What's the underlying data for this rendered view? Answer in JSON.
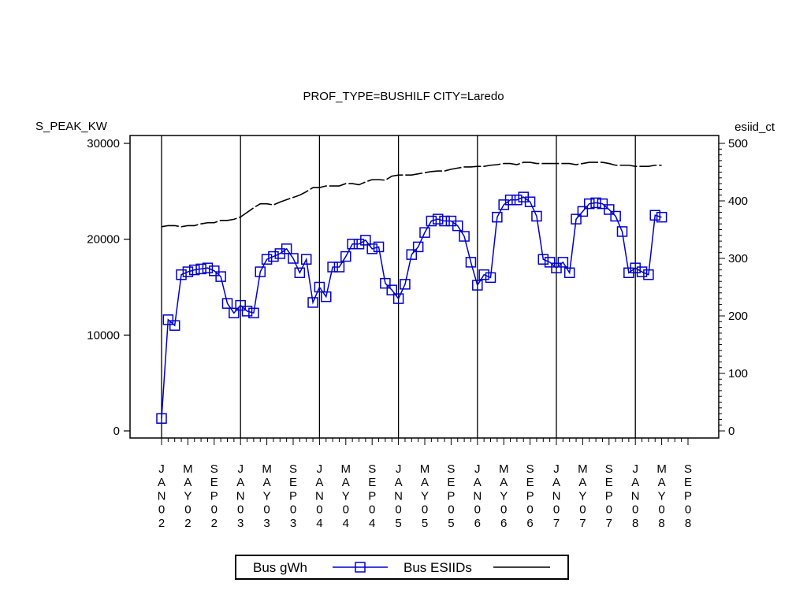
{
  "chart_data": {
    "type": "line",
    "title": "PROF_TYPE=BUSHILF CITY=Laredo",
    "y_left_label": "S_PEAK_KW",
    "y_right_label": "esiid_ct",
    "y_left_ticks": [
      0,
      10000,
      20000,
      30000
    ],
    "y_right_ticks": [
      0,
      100,
      200,
      300,
      400,
      500
    ],
    "y_left_range": [
      0,
      30000
    ],
    "y_right_range": [
      0,
      500
    ],
    "x_range": [
      "2002-01",
      "2008-09"
    ],
    "x_tick_labels": [
      "JAN02",
      "MAY02",
      "SEP02",
      "JAN03",
      "MAY03",
      "SEP03",
      "JAN04",
      "MAY04",
      "SEP04",
      "JAN05",
      "MAY05",
      "SEP05",
      "JAN06",
      "MAY06",
      "SEP06",
      "JAN07",
      "MAY07",
      "SEP07",
      "JAN08",
      "MAY08",
      "SEP08"
    ],
    "reference_lines_at": [
      "2002-01",
      "2003-01",
      "2004-01",
      "2005-01",
      "2006-01",
      "2007-01",
      "2008-01"
    ],
    "series": [
      {
        "name": "Bus gWh",
        "axis": "left",
        "color": "#0000cc",
        "marker": "square",
        "x": [
          "2002-01",
          "2002-02",
          "2002-03",
          "2002-04",
          "2002-05",
          "2002-06",
          "2002-07",
          "2002-08",
          "2002-09",
          "2002-10",
          "2002-11",
          "2002-12",
          "2003-01",
          "2003-02",
          "2003-03",
          "2003-04",
          "2003-05",
          "2003-06",
          "2003-07",
          "2003-08",
          "2003-09",
          "2003-10",
          "2003-11",
          "2003-12",
          "2004-01",
          "2004-02",
          "2004-03",
          "2004-04",
          "2004-05",
          "2004-06",
          "2004-07",
          "2004-08",
          "2004-09",
          "2004-10",
          "2004-11",
          "2004-12",
          "2005-01",
          "2005-02",
          "2005-03",
          "2005-04",
          "2005-05",
          "2005-06",
          "2005-07",
          "2005-08",
          "2005-09",
          "2005-10",
          "2005-11",
          "2005-12",
          "2006-01",
          "2006-02",
          "2006-03",
          "2006-04",
          "2006-05",
          "2006-06",
          "2006-07",
          "2006-08",
          "2006-09",
          "2006-10",
          "2006-11",
          "2006-12",
          "2007-01",
          "2007-02",
          "2007-03",
          "2007-04",
          "2007-05",
          "2007-06",
          "2007-07",
          "2007-08",
          "2007-09",
          "2007-10",
          "2007-11",
          "2007-12",
          "2008-01",
          "2008-02",
          "2008-03",
          "2008-04",
          "2008-05"
        ],
        "values": [
          1300,
          11600,
          11000,
          16300,
          16600,
          16800,
          16900,
          17000,
          16700,
          16100,
          13300,
          12300,
          13100,
          12500,
          12300,
          16600,
          17900,
          18200,
          18500,
          19000,
          18000,
          16500,
          17900,
          13400,
          15000,
          14000,
          17100,
          17100,
          18200,
          19500,
          19500,
          19900,
          19000,
          19200,
          15400,
          14700,
          13800,
          15300,
          18400,
          19200,
          20700,
          21900,
          22100,
          21900,
          21900,
          21400,
          20300,
          17600,
          15200,
          16300,
          16000,
          22300,
          23600,
          24100,
          24100,
          24400,
          23900,
          22400,
          17900,
          17600,
          17000,
          17600,
          16500,
          22100,
          22900,
          23700,
          23800,
          23700,
          23100,
          22400,
          20800,
          16500,
          17000,
          16600,
          16300,
          22500,
          22300
        ]
      },
      {
        "name": "Bus ESIIDs",
        "axis": "right",
        "color": "#000000",
        "marker": "none",
        "line_style": "dashed",
        "x": [
          "2002-01",
          "2002-02",
          "2002-03",
          "2002-04",
          "2002-05",
          "2002-06",
          "2002-07",
          "2002-08",
          "2002-09",
          "2002-10",
          "2002-11",
          "2002-12",
          "2003-01",
          "2003-02",
          "2003-03",
          "2003-04",
          "2003-05",
          "2003-06",
          "2003-07",
          "2003-08",
          "2003-09",
          "2003-10",
          "2003-11",
          "2003-12",
          "2004-01",
          "2004-02",
          "2004-03",
          "2004-04",
          "2004-05",
          "2004-06",
          "2004-07",
          "2004-08",
          "2004-09",
          "2004-10",
          "2004-11",
          "2004-12",
          "2005-01",
          "2005-02",
          "2005-03",
          "2005-04",
          "2005-05",
          "2005-06",
          "2005-07",
          "2005-08",
          "2005-09",
          "2005-10",
          "2005-11",
          "2005-12",
          "2006-01",
          "2006-02",
          "2006-03",
          "2006-04",
          "2006-05",
          "2006-06",
          "2006-07",
          "2006-08",
          "2006-09",
          "2006-10",
          "2006-11",
          "2006-12",
          "2007-01",
          "2007-02",
          "2007-03",
          "2007-04",
          "2007-05",
          "2007-06",
          "2007-07",
          "2007-08",
          "2007-09",
          "2007-10",
          "2007-11",
          "2007-12",
          "2008-01",
          "2008-02",
          "2008-03",
          "2008-04",
          "2008-05"
        ],
        "values": [
          355,
          357,
          357,
          355,
          357,
          357,
          360,
          362,
          362,
          366,
          366,
          368,
          372,
          380,
          388,
          395,
          395,
          393,
          398,
          402,
          406,
          410,
          416,
          423,
          423,
          426,
          426,
          426,
          430,
          430,
          428,
          433,
          437,
          437,
          436,
          443,
          445,
          445,
          445,
          447,
          449,
          451,
          452,
          452,
          455,
          457,
          459,
          459,
          460,
          460,
          462,
          463,
          465,
          465,
          463,
          467,
          467,
          465,
          465,
          465,
          465,
          465,
          465,
          463,
          465,
          467,
          467,
          467,
          465,
          462,
          462,
          462,
          460,
          460,
          460,
          462,
          462
        ]
      }
    ],
    "legend": {
      "position": "bottom-center",
      "entries": [
        "Bus gWh",
        "Bus ESIIDs"
      ]
    }
  }
}
